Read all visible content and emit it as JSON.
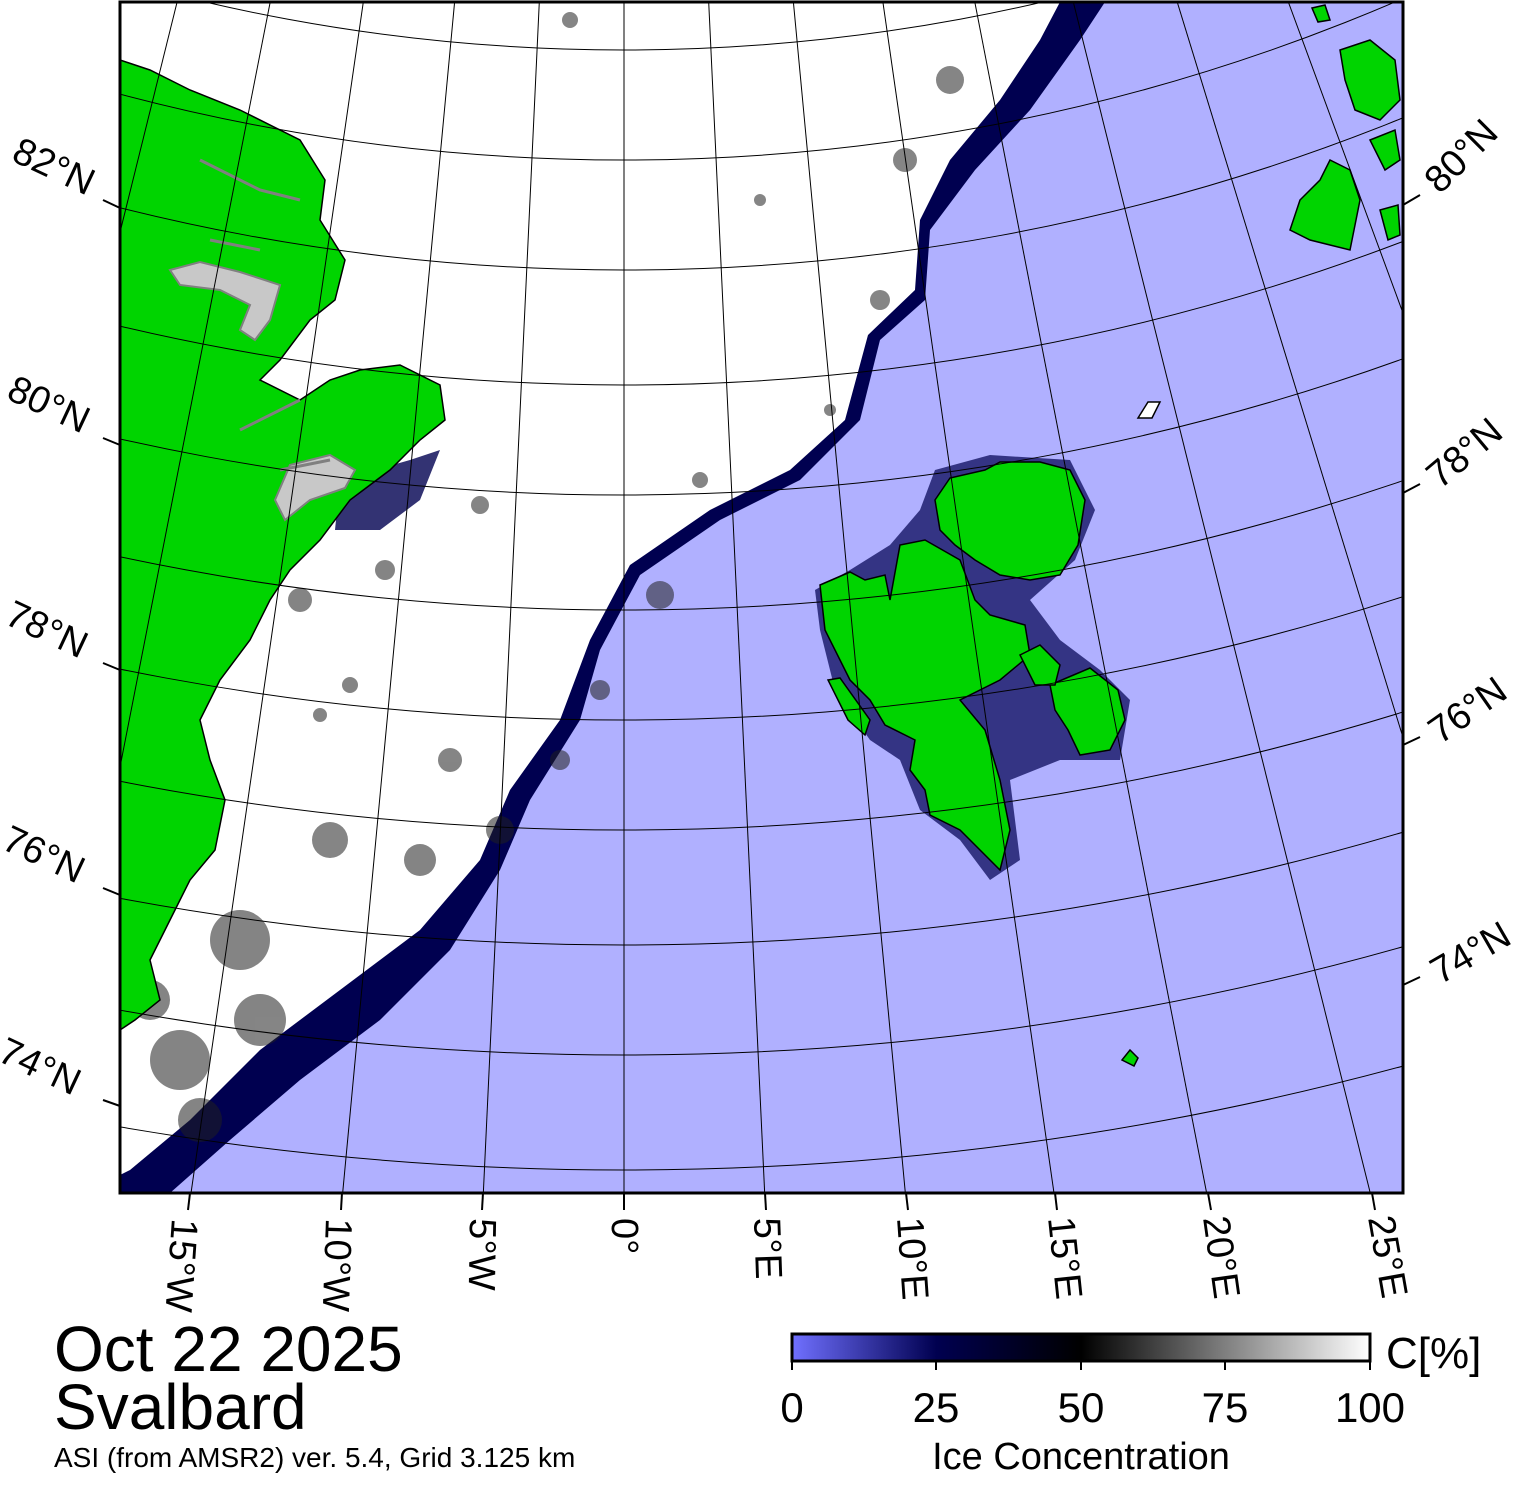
{
  "map": {
    "date": "Oct 22 2025",
    "region": "Svalbard",
    "source": "ASI (from AMSR2) ver. 5.4,  Grid 3.125 km",
    "colors": {
      "land": "#00d400",
      "open_water": "#b0b0ff",
      "ice_full": "#ffffff",
      "ice_mid": "#000000",
      "ice_low": "#000050",
      "coast_gray": "#808080"
    },
    "left_lat_labels": [
      "82°N",
      "80°N",
      "78°N",
      "76°N",
      "74°N"
    ],
    "right_lat_labels": [
      "80°N",
      "78°N",
      "76°N",
      "74°N"
    ],
    "lon_labels": [
      "15°W",
      "10°W",
      "5°W",
      "0°",
      "5°E",
      "10°E",
      "15°E",
      "20°E",
      "25°E"
    ]
  },
  "colorbar": {
    "title": "Ice Concentration",
    "unit": "C[%]",
    "ticks": [
      "0",
      "25",
      "50",
      "75",
      "100"
    ],
    "stops": [
      "#7070ff",
      "#000050",
      "#000000",
      "#ffffff"
    ]
  }
}
